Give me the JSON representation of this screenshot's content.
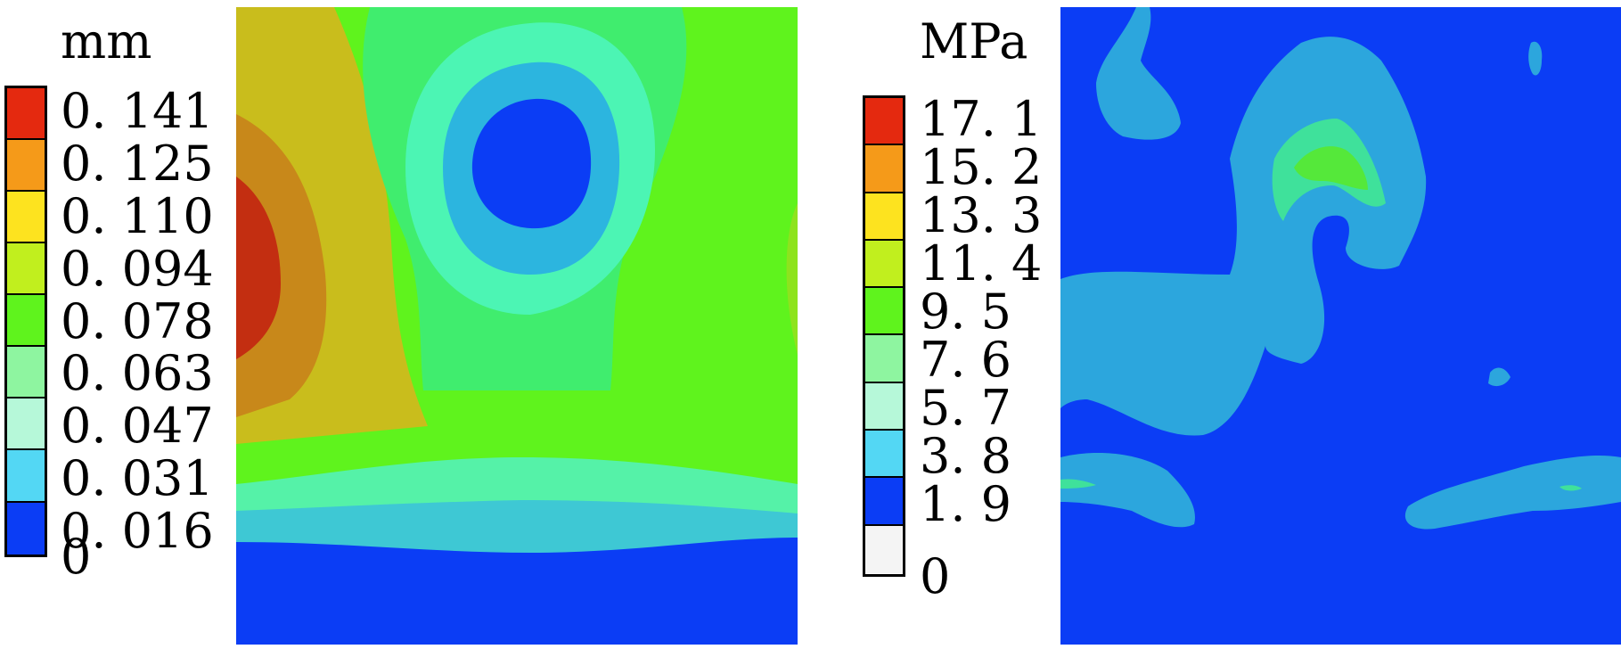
{
  "left_panel": {
    "unit": "mm",
    "legend": [
      "0. 141",
      "0. 125",
      "0. 110",
      "0. 094",
      "0. 078",
      "0. 063",
      "0. 047",
      "0. 031",
      "0. 016",
      "0"
    ],
    "swatch_colors": [
      "#e4290f",
      "#f59a19",
      "#fde31f",
      "#c1ef1e",
      "#5ff31d",
      "#8ef5a0",
      "#b6f8d9",
      "#53d7f4",
      "#0b3df5"
    ]
  },
  "right_panel": {
    "unit": "MPa",
    "legend": [
      "17. 1",
      "15. 2",
      "13. 3",
      "11. 4",
      "9. 5",
      "7. 6",
      "5. 7",
      "3. 8",
      "1. 9",
      "0"
    ],
    "swatch_colors": [
      "#e4290f",
      "#f59a19",
      "#fde31f",
      "#c1ef1e",
      "#5ff31d",
      "#8ef5a0",
      "#b6f8d9",
      "#53d7f4",
      "#0b3df5",
      "#f4f4f4"
    ]
  }
}
